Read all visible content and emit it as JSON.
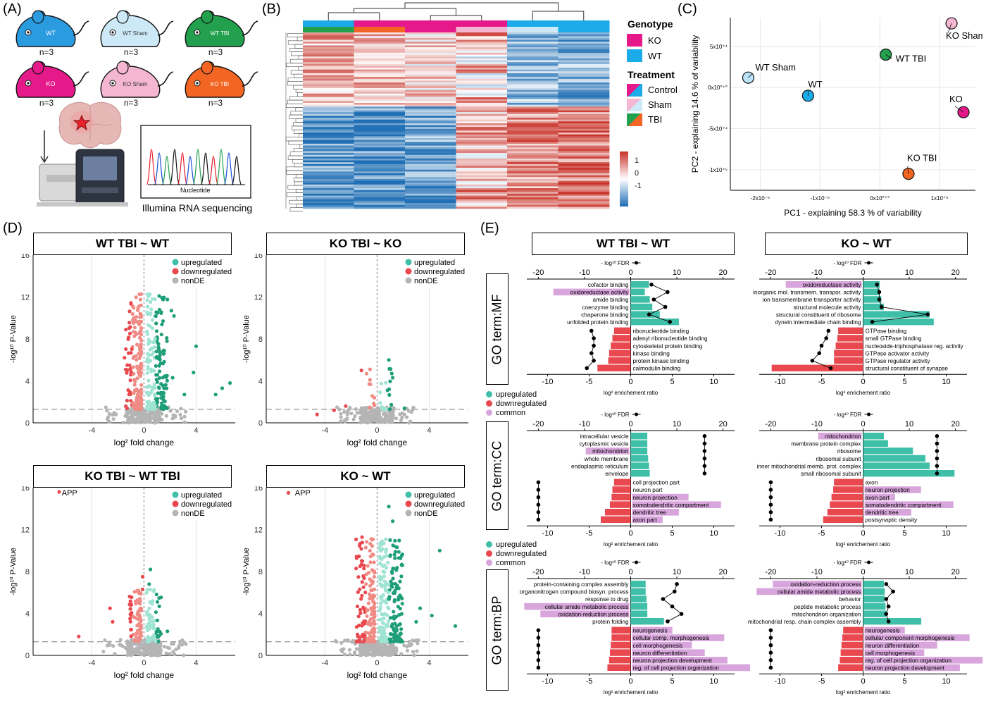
{
  "panels": {
    "A": "(A)",
    "B": "(B)",
    "C": "(C)",
    "D": "(D)",
    "E": "(E)"
  },
  "panelA": {
    "mice": [
      {
        "label": "WT",
        "n": "n=3",
        "color": "#2b9be0"
      },
      {
        "label": "WT Sham",
        "n": "n=3",
        "color": "#cde9f8"
      },
      {
        "label": "WT TBI",
        "n": "n=3",
        "color": "#23a04d"
      },
      {
        "label": "KO",
        "n": "n=3",
        "color": "#e6198b"
      },
      {
        "label": "KO Sham",
        "n": "n=3",
        "color": "#f5b6d2"
      },
      {
        "label": "KO TBI",
        "n": "n=3",
        "color": "#f26522"
      }
    ],
    "chromatogram_xlabel": "Nucleotide",
    "caption": "Illumina RNA sequencing"
  },
  "panelB": {
    "legend_genotype_title": "Genotype",
    "genotype": [
      {
        "label": "KO",
        "color": "#e6198b"
      },
      {
        "label": "WT",
        "color": "#1aabe8"
      }
    ],
    "legend_treatment_title": "Treatment",
    "treatment": [
      {
        "label": "Control",
        "colors": [
          "#e6198b",
          "#1aabe8"
        ]
      },
      {
        "label": "Sham",
        "colors": [
          "#f5b6d2",
          "#cde9f8"
        ]
      },
      {
        "label": "TBI",
        "colors": [
          "#23a04d",
          "#f26522"
        ]
      }
    ],
    "scale_ticks": [
      "1",
      "0",
      "-1"
    ]
  },
  "chart_data": [
    {
      "type": "scatter",
      "panel": "C",
      "xlabel": "PC1 - explaining 58.3 % of variability",
      "ylabel": "PC2 - explaining 14.6 % of variability",
      "xticks": [
        "-2x10⁻⁵",
        "-1x10⁻⁵",
        "0x10°⁺°",
        "1x10⁺⁵"
      ],
      "yticks": [
        "5x10⁺⁴",
        "0x10°⁺°",
        "-5x10⁺⁴",
        "-1x10⁺⁵"
      ],
      "points": [
        {
          "label": "WT Sham",
          "x": -220000,
          "y": 12000,
          "color": "#bde3f8"
        },
        {
          "label": "WT",
          "x": -120000,
          "y": -10000,
          "color": "#1aabe8"
        },
        {
          "label": "WT TBI",
          "x": 10000,
          "y": 40000,
          "color": "#23a04d"
        },
        {
          "label": "KO Sham",
          "x": 120000,
          "y": 78000,
          "color": "#f5b6d2"
        },
        {
          "label": "KO",
          "x": 140000,
          "y": -30000,
          "color": "#e6198b"
        },
        {
          "label": "KO TBI",
          "x": 48000,
          "y": -105000,
          "color": "#f26522"
        }
      ]
    },
    {
      "type": "scatter",
      "panel": "D",
      "title": "WT TBI ~ WT",
      "xlabel": "log² fold change",
      "ylabel": "-log¹⁰ P-Value",
      "xticks": [
        "-4",
        "0",
        "4"
      ],
      "yticks": [
        "0",
        "4",
        "8",
        "12",
        "16"
      ],
      "legend": [
        "upregulated",
        "downregulated",
        "nonDE"
      ],
      "annotation": "",
      "seed": 11,
      "n_up": 180,
      "n_down": 170,
      "n_non": 200,
      "spread": 1.0,
      "ymax": 11,
      "extra_up": [
        [
          6.6,
          3.8
        ],
        [
          6.0,
          3.3
        ],
        [
          5.5,
          2.7
        ],
        [
          4.0,
          7.3
        ],
        [
          3.8,
          4.8
        ],
        [
          2.3,
          10.2
        ],
        [
          2.1,
          10.7
        ],
        [
          3.1,
          2.7
        ],
        [
          2.2,
          4.3
        ]
      ]
    },
    {
      "type": "scatter",
      "panel": "D",
      "title": "KO TBI ~ KO",
      "xlabel": "log² fold change",
      "ylabel": "-log¹⁰ P-Value",
      "xticks": [
        "-4",
        "0",
        "4"
      ],
      "yticks": [
        "0",
        "4",
        "8",
        "12",
        "16"
      ],
      "legend": [
        "upregulated",
        "downregulated",
        "nonDE"
      ],
      "annotation": "",
      "seed": 23,
      "n_up": 18,
      "n_down": 10,
      "n_non": 200,
      "spread": 0.6,
      "ymax": 4,
      "extra_up": [
        [
          0.9,
          6.0
        ],
        [
          1.2,
          4.3
        ],
        [
          0.8,
          3.1
        ],
        [
          2.1,
          1.4
        ]
      ],
      "extra_down": [
        [
          -1.2,
          5.0
        ],
        [
          -2.4,
          1.6
        ],
        [
          -3.3,
          1.2
        ],
        [
          -4.6,
          0.8
        ]
      ]
    },
    {
      "type": "scatter",
      "panel": "D",
      "title": "KO TBI ~ WT TBI",
      "xlabel": "log² fold change",
      "ylabel": "-log¹⁰ P-Value",
      "xticks": [
        "-4",
        "0",
        "4"
      ],
      "yticks": [
        "0",
        "4",
        "8",
        "12",
        "16"
      ],
      "legend": [
        "upregulated",
        "downregulated",
        "nonDE"
      ],
      "annotation": "APP",
      "seed": 37,
      "n_up": 60,
      "n_down": 70,
      "n_non": 220,
      "spread": 0.7,
      "ymax": 5,
      "extra_up": [
        [
          0.5,
          8.2
        ],
        [
          0.4,
          6.8
        ],
        [
          1.8,
          2.3
        ]
      ],
      "extra_down": [
        [
          -6.5,
          15.6
        ],
        [
          -5.0,
          1.8
        ],
        [
          -2.6,
          4.5
        ],
        [
          -2.4,
          3.2
        ],
        [
          -0.1,
          6.3
        ],
        [
          -0.1,
          7.5
        ]
      ]
    },
    {
      "type": "scatter",
      "panel": "D",
      "title": "KO ~ WT",
      "xlabel": "log² fold change",
      "ylabel": "-log¹⁰ P-Value",
      "xticks": [
        "-4",
        "0",
        "4"
      ],
      "yticks": [
        "0",
        "4",
        "8",
        "12",
        "16"
      ],
      "legend": [
        "upregulated",
        "downregulated",
        "nonDE"
      ],
      "annotation": "APP",
      "seed": 53,
      "n_up": 220,
      "n_down": 160,
      "n_non": 260,
      "spread": 1.1,
      "ymax": 10,
      "extra_up": [
        [
          4.8,
          10.0
        ],
        [
          3.3,
          4.5
        ],
        [
          3.0,
          3.2
        ],
        [
          6.0,
          2.8
        ],
        [
          4.2,
          3.8
        ],
        [
          1.0,
          11.0
        ],
        [
          1.2,
          12.8
        ],
        [
          0.9,
          14.2
        ]
      ],
      "extra_down": [
        [
          -6.8,
          15.5
        ]
      ]
    },
    {
      "type": "bar",
      "panel": "E",
      "facet": "GO term:MF",
      "title": "WT TBI ~ WT",
      "xlabel": "log² enrichement ratio",
      "fdr_label": "- log¹⁰ FDR",
      "top_ticks": [
        "-20",
        "-10",
        "0",
        "10",
        "20"
      ],
      "bottom_ticks": [
        "-10",
        "-5",
        "0",
        "5",
        "10"
      ],
      "up": [
        {
          "term": "cofactor binding",
          "ratio": 2.2,
          "fdr": 4.5,
          "common": false
        },
        {
          "term": "oxidoreductase activity",
          "ratio": 1.7,
          "fdr": 8.0,
          "common": true
        },
        {
          "term": "amide binding",
          "ratio": 2.3,
          "fdr": 5.0,
          "common": false
        },
        {
          "term": "coenzyme binding",
          "ratio": 2.6,
          "fdr": 7.5,
          "common": false
        },
        {
          "term": "chaperone binding",
          "ratio": 3.5,
          "fdr": 4.0,
          "common": false
        },
        {
          "term": "unfolded protein binding",
          "ratio": 5.8,
          "fdr": 8.5,
          "common": false
        }
      ],
      "down": [
        {
          "term": "ribonucleotide binding",
          "ratio": -2.0,
          "fdr": -8.5,
          "common": false
        },
        {
          "term": "adenyl ribonucleotide binding",
          "ratio": -2.2,
          "fdr": -8.0,
          "common": false
        },
        {
          "term": "cytoskeletal protein binding",
          "ratio": -2.4,
          "fdr": -8.0,
          "common": false
        },
        {
          "term": "kinase binding",
          "ratio": -2.6,
          "fdr": -8.5,
          "common": false
        },
        {
          "term": "protein kinase binding",
          "ratio": -2.7,
          "fdr": -8.0,
          "common": false
        },
        {
          "term": "calmodulin binding",
          "ratio": -4.0,
          "fdr": -9.5,
          "common": false
        }
      ]
    },
    {
      "type": "bar",
      "panel": "E",
      "facet": "GO term:MF",
      "title": "KO ~ WT",
      "xlabel": "log² enrichement ratio",
      "fdr_label": "- log¹⁰ FDR",
      "top_ticks": [
        "-20",
        "-10",
        "0",
        "10",
        "20"
      ],
      "bottom_ticks": [
        "-10",
        "-5",
        "0",
        "5",
        "10"
      ],
      "up": [
        {
          "term": "oxidoreductase activity",
          "ratio": 2.0,
          "fdr": 3.0,
          "common": true
        },
        {
          "term": "inorganic mol. transmem. transpor. activity",
          "ratio": 2.0,
          "fdr": 3.5,
          "common": false
        },
        {
          "term": "ion transmembrane transporter activity",
          "ratio": 2.2,
          "fdr": 3.5,
          "common": false
        },
        {
          "term": "structural molecule activity",
          "ratio": 2.5,
          "fdr": 4.0,
          "common": false
        },
        {
          "term": "structural constituent of ribosome",
          "ratio": 8.0,
          "fdr": 14.0,
          "common": false
        },
        {
          "term": "dynein intermediate chain binding",
          "ratio": 8.5,
          "fdr": 2.0,
          "common": false
        }
      ],
      "down": [
        {
          "term": "GTPase binding",
          "ratio": -3.0,
          "fdr": -7.5,
          "common": false
        },
        {
          "term": "small GTPase binding",
          "ratio": -3.1,
          "fdr": -8.0,
          "common": false
        },
        {
          "term": "nucleoside-triphosphatase reg. activity",
          "ratio": -3.3,
          "fdr": -9.0,
          "common": false
        },
        {
          "term": "GTPase activator activity",
          "ratio": -3.5,
          "fdr": -9.5,
          "common": false
        },
        {
          "term": "GTPase regulator activity",
          "ratio": -3.5,
          "fdr": -11.0,
          "common": false
        },
        {
          "term": "structural constituent of synapse",
          "ratio": -11.0,
          "fdr": -7.0,
          "common": false
        }
      ]
    },
    {
      "type": "bar",
      "panel": "E",
      "facet": "GO term:CC",
      "title": "WT TBI ~ WT",
      "xlabel": "log² enrichement ratio",
      "fdr_label": "- log¹⁰ FDR",
      "top_ticks": [
        "-20",
        "-10",
        "0",
        "10",
        "20"
      ],
      "bottom_ticks": [
        "-10",
        "-5",
        "0",
        "5",
        "10"
      ],
      "up": [
        {
          "term": "intracellular vesicle",
          "ratio": 2.0,
          "fdr": 16.0,
          "common": false
        },
        {
          "term": "cytoplasmic vesicle",
          "ratio": 2.0,
          "fdr": 16.0,
          "common": false
        },
        {
          "term": "mitochondrion",
          "ratio": 2.0,
          "fdr": 16.0,
          "common": true
        },
        {
          "term": "whole membrane",
          "ratio": 2.1,
          "fdr": 16.0,
          "common": false
        },
        {
          "term": "endoplasmic reticulum",
          "ratio": 2.2,
          "fdr": 16.0,
          "common": false
        },
        {
          "term": "envelope",
          "ratio": 2.3,
          "fdr": 16.0,
          "common": false
        }
      ],
      "down": [
        {
          "term": "cell projection part",
          "ratio": -2.0,
          "fdr": -20.0,
          "common": false
        },
        {
          "term": "neuron part",
          "ratio": -2.2,
          "fdr": -20.0,
          "common": false
        },
        {
          "term": "neuron projection",
          "ratio": -2.3,
          "fdr": -20.0,
          "common": true
        },
        {
          "term": "somatodendritic compartment",
          "ratio": -2.5,
          "fdr": -20.0,
          "common": true
        },
        {
          "term": "dendritic tree",
          "ratio": -3.1,
          "fdr": -20.0,
          "common": true
        },
        {
          "term": "axon part",
          "ratio": -3.6,
          "fdr": -20.0,
          "common": true
        }
      ]
    },
    {
      "type": "bar",
      "panel": "E",
      "facet": "GO term:CC",
      "title": "KO ~ WT",
      "xlabel": "log² enrichement ratio",
      "fdr_label": "- log¹⁰ FDR",
      "top_ticks": [
        "-20",
        "-10",
        "0",
        "10",
        "20"
      ],
      "bottom_ticks": [
        "-10",
        "-5",
        "0",
        "5",
        "10"
      ],
      "up": [
        {
          "term": "mitochondrion",
          "ratio": 2.5,
          "fdr": 16.0,
          "common": true
        },
        {
          "term": "membrane protein complex",
          "ratio": 3.0,
          "fdr": 16.0,
          "common": false
        },
        {
          "term": "ribosome",
          "ratio": 6.0,
          "fdr": 16.0,
          "common": false
        },
        {
          "term": "ribosomal subunit",
          "ratio": 7.5,
          "fdr": 16.0,
          "common": false
        },
        {
          "term": "inner mitochondrial memb. prot. complex",
          "ratio": 8.0,
          "fdr": 16.0,
          "common": false
        },
        {
          "term": "small ribosomal subunit",
          "ratio": 11.0,
          "fdr": 16.0,
          "common": false
        }
      ],
      "down": [
        {
          "term": "axon",
          "ratio": -3.5,
          "fdr": -20.0,
          "common": false
        },
        {
          "term": "neuron projection",
          "ratio": -3.6,
          "fdr": -20.0,
          "common": true
        },
        {
          "term": "axon part",
          "ratio": -3.8,
          "fdr": -20.0,
          "common": true
        },
        {
          "term": "somatodendritic compartment",
          "ratio": -4.0,
          "fdr": -20.0,
          "common": true
        },
        {
          "term": "dendritic tree",
          "ratio": -4.3,
          "fdr": -20.0,
          "common": true
        },
        {
          "term": "postsynaptic density",
          "ratio": -4.8,
          "fdr": -20.0,
          "common": false
        }
      ]
    },
    {
      "type": "bar",
      "panel": "E",
      "facet": "GO term:BP",
      "title": "WT TBI ~ WT",
      "xlabel": "log² enrichement ratio",
      "fdr_label": "- log¹⁰ FDR",
      "top_ticks": [
        "-20",
        "-10",
        "0",
        "10",
        "20"
      ],
      "bottom_ticks": [
        "-10",
        "-5",
        "0",
        "5",
        "10"
      ],
      "up": [
        {
          "term": "protein-containing complex assembly",
          "ratio": 1.8,
          "fdr": 10.0,
          "common": false
        },
        {
          "term": "organonitrogen compound biosyn. process",
          "ratio": 1.8,
          "fdr": 9.5,
          "common": false
        },
        {
          "term": "response to drug",
          "ratio": 1.9,
          "fdr": 7.0,
          "common": false
        },
        {
          "term": "cellular amide metabolic process",
          "ratio": 2.0,
          "fdr": 9.0,
          "common": true
        },
        {
          "term": "oxidation-reduction process",
          "ratio": 2.0,
          "fdr": 11.0,
          "common": true
        },
        {
          "term": "protein folding",
          "ratio": 4.0,
          "fdr": 8.0,
          "common": false
        }
      ],
      "down": [
        {
          "term": "neurogenesis",
          "ratio": -2.3,
          "fdr": -20.0,
          "common": true
        },
        {
          "term": "cellular comp. morphogenesis",
          "ratio": -2.3,
          "fdr": -20.0,
          "common": true
        },
        {
          "term": "cell morphogenesis",
          "ratio": -2.4,
          "fdr": -20.0,
          "common": true
        },
        {
          "term": "neuron differentiation",
          "ratio": -2.5,
          "fdr": -20.0,
          "common": true
        },
        {
          "term": "neuron projection development",
          "ratio": -2.6,
          "fdr": -20.0,
          "common": true
        },
        {
          "term": "reg. of cell projection organization",
          "ratio": -2.8,
          "fdr": -20.0,
          "common": true
        }
      ]
    },
    {
      "type": "bar",
      "panel": "E",
      "facet": "GO term:BP",
      "title": "KO ~ WT",
      "xlabel": "log² enrichement ratio",
      "fdr_label": "- log¹⁰ FDR",
      "top_ticks": [
        "-20",
        "-10",
        "0",
        "10",
        "20"
      ],
      "bottom_ticks": [
        "-10",
        "-5",
        "0",
        "5",
        "10"
      ],
      "up": [
        {
          "term": "oxidation-reduction process",
          "ratio": 2.5,
          "fdr": 5.0,
          "common": true
        },
        {
          "term": "cellular amide metabolic process",
          "ratio": 2.6,
          "fdr": 6.5,
          "common": true
        },
        {
          "term": "behavior",
          "ratio": 2.6,
          "fdr": 5.0,
          "common": false
        },
        {
          "term": "peptide metabolic process",
          "ratio": 2.7,
          "fdr": 5.5,
          "common": false
        },
        {
          "term": "mitochondrion organization",
          "ratio": 2.8,
          "fdr": 5.0,
          "common": false
        },
        {
          "term": "mitochondrial resp. chain complex assembly",
          "ratio": 7.0,
          "fdr": 5.5,
          "common": false
        }
      ],
      "down": [
        {
          "term": "neurogenesis",
          "ratio": -2.4,
          "fdr": -20.0,
          "common": true
        },
        {
          "term": "cellular component morphogenesis",
          "ratio": -2.5,
          "fdr": -20.0,
          "common": true
        },
        {
          "term": "neuron differentiation",
          "ratio": -2.6,
          "fdr": -20.0,
          "common": true
        },
        {
          "term": "cell morphogenesis",
          "ratio": -2.7,
          "fdr": -20.0,
          "common": true
        },
        {
          "term": "reg. of cell projection organization",
          "ratio": -2.8,
          "fdr": -20.0,
          "common": true
        },
        {
          "term": "neuron projection development",
          "ratio": -3.0,
          "fdr": -20.0,
          "common": true
        }
      ]
    }
  ],
  "panelE": {
    "facets": [
      "GO term:MF",
      "GO term:CC",
      "GO term:BP"
    ],
    "titles": [
      "WT TBI ~ WT",
      "KO ~ WT"
    ],
    "legend": [
      "upregulated",
      "downregulated",
      "common"
    ]
  },
  "colors": {
    "up": "#3fbfa8",
    "down": "#e8484e",
    "common": "#d8a6dc",
    "nonde": "#b4b4b4",
    "up_dark": "#1e9e78",
    "down_light": "#f08a84",
    "up_light": "#9fe3d3"
  }
}
